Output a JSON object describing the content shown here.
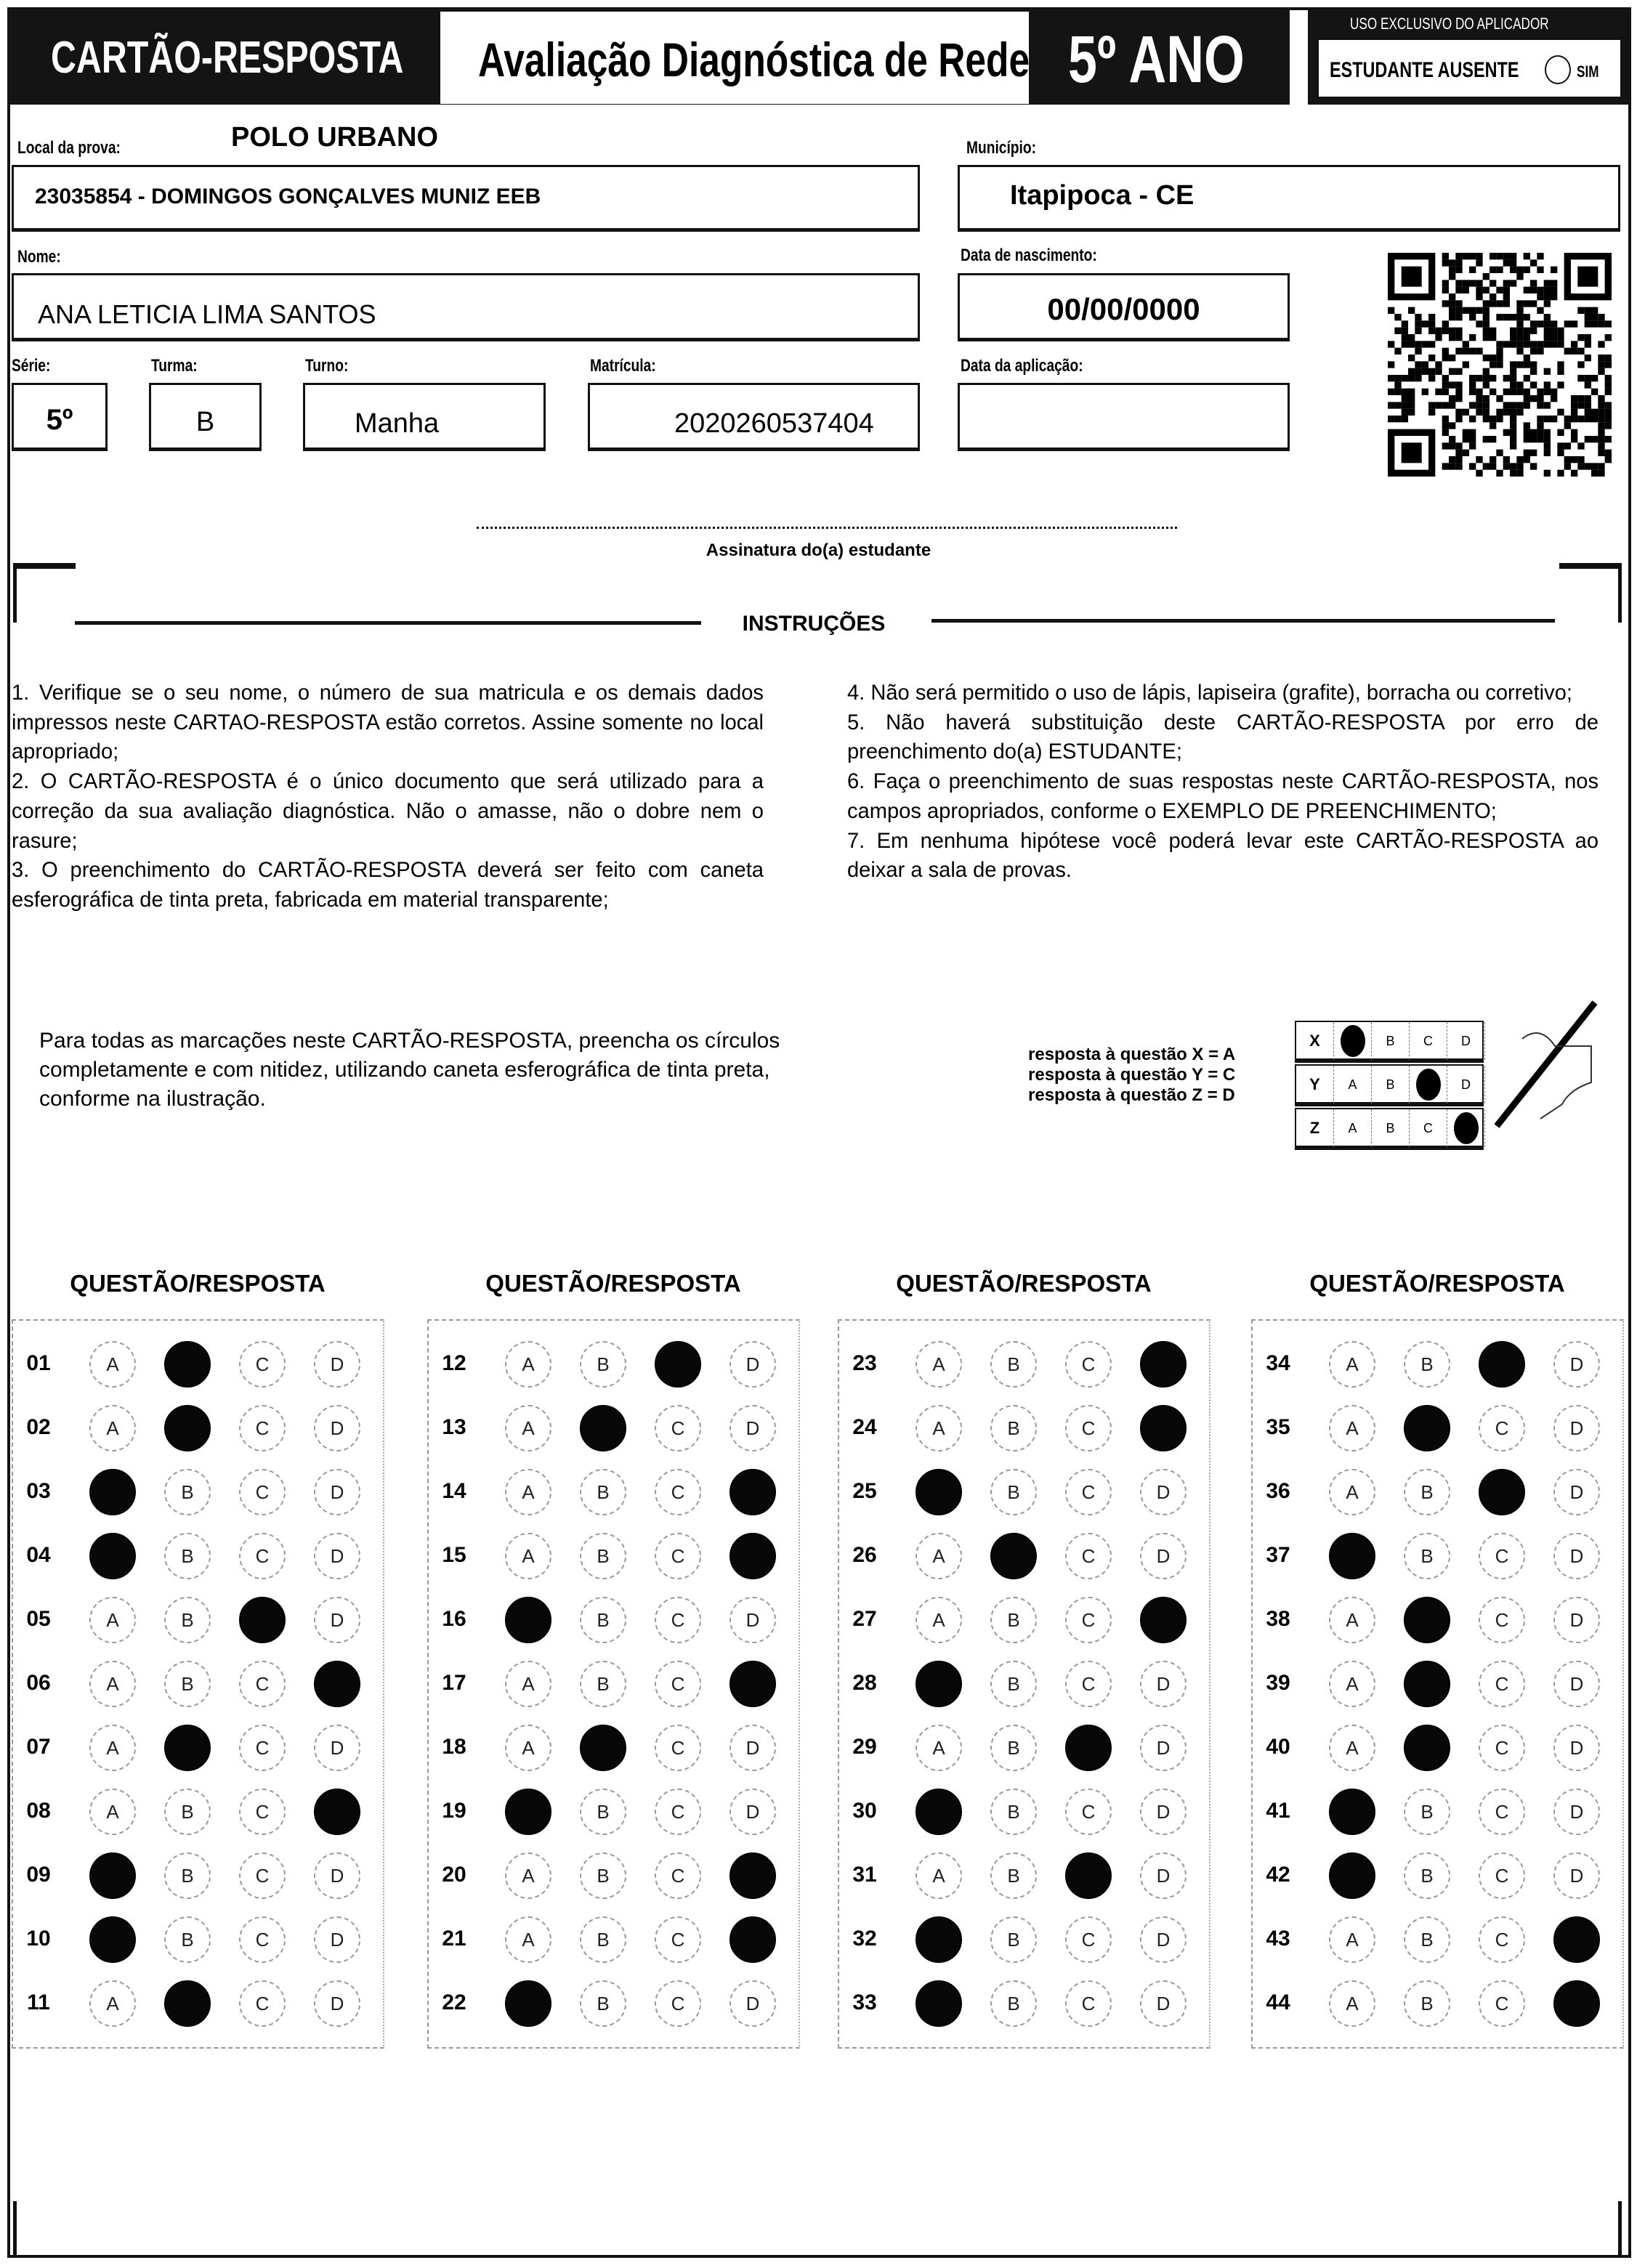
{
  "header": {
    "title": "CARTÃO-RESPOSTA",
    "subtitle": "Avaliação Diagnóstica de Rede",
    "grade": "5º ANO",
    "applicator": {
      "label": "USO EXCLUSIVO DO APLICADOR",
      "absent_label": "ESTUDANTE AUSENTE",
      "absent_option": "SIM"
    }
  },
  "fields": {
    "local_label": "Local da prova:",
    "local_polo": "POLO URBANO",
    "school": "23035854 - DOMINGOS GONÇALVES MUNIZ EEB",
    "municipio_label": "Município:",
    "municipio": "Itapipoca - CE",
    "nome_label": "Nome:",
    "nome": "ANA LETICIA LIMA SANTOS",
    "nascimento_label": "Data de nascimento:",
    "nascimento": "00/00/0000",
    "serie_label": "Série:",
    "serie": "5º",
    "turma_label": "Turma:",
    "turma": "B",
    "turno_label": "Turno:",
    "turno": "Manha",
    "matricula_label": "Matrícula:",
    "matricula": "2020260537404",
    "aplicacao_label": "Data da aplicação:",
    "aplicacao": ""
  },
  "signature_label": "Assinatura do(a) estudante",
  "instructions": {
    "title": "INSTRUÇÕES",
    "left": [
      "1. Verifique se o seu nome, o número de sua matricula e os demais dados impressos neste CARTAO-RESPOSTA estão corretos. Assine somente no local apropriado;",
      "2. O CARTÃO-RESPOSTA é o único documento que será utilizado para a correção da sua avaliação diagnóstica. Não o amasse, não o dobre nem o rasure;",
      "3. O preenchimento do CARTÃO-RESPOSTA deverá ser feito com caneta esferográfica de tinta preta, fabricada em material transparente;"
    ],
    "right": [
      "4. Não será permitido o uso de lápis, lapiseira (grafite), borracha ou corretivo;",
      "5. Não haverá substituição deste CARTÃO-RESPOSTA por erro de preenchimento do(a) ESTUDANTE;",
      "6. Faça o preenchimento de suas respostas neste CARTÃO-RESPOSTA, nos campos apropriados, conforme o EXEMPLO DE PREENCHIMENTO;",
      "7. Em nenhuma hipótese você poderá levar este CARTÃO-RESPOSTA ao deixar a sala de provas."
    ]
  },
  "example": {
    "text": "Para todas as marcações neste CARTÃO-RESPOSTA, preencha os círculos completamente e com nitidez, utilizando caneta esferográfica de tinta preta, conforme na ilustração.",
    "legend": [
      "resposta à questão X = A",
      "resposta à questão Y = C",
      "resposta à questão Z = D"
    ],
    "rows": [
      {
        "q": "X",
        "answer": "A"
      },
      {
        "q": "Y",
        "answer": "C"
      },
      {
        "q": "Z",
        "answer": "D"
      }
    ],
    "options": [
      "A",
      "B",
      "C",
      "D"
    ]
  },
  "answers": {
    "column_title": "QUESTÃO/RESPOSTA",
    "options": [
      "A",
      "B",
      "C",
      "D"
    ],
    "columns": [
      [
        [
          "01",
          "B"
        ],
        [
          "02",
          "B"
        ],
        [
          "03",
          "A"
        ],
        [
          "04",
          "A"
        ],
        [
          "05",
          "C"
        ],
        [
          "06",
          "D"
        ],
        [
          "07",
          "B"
        ],
        [
          "08",
          "D"
        ],
        [
          "09",
          "A"
        ],
        [
          "10",
          "A"
        ],
        [
          "11",
          "B"
        ]
      ],
      [
        [
          "12",
          "C"
        ],
        [
          "13",
          "B"
        ],
        [
          "14",
          "D"
        ],
        [
          "15",
          "D"
        ],
        [
          "16",
          "A"
        ],
        [
          "17",
          "D"
        ],
        [
          "18",
          "B"
        ],
        [
          "19",
          "A"
        ],
        [
          "20",
          "D"
        ],
        [
          "21",
          "D"
        ],
        [
          "22",
          "A"
        ]
      ],
      [
        [
          "23",
          "D"
        ],
        [
          "24",
          "D"
        ],
        [
          "25",
          "A"
        ],
        [
          "26",
          "B"
        ],
        [
          "27",
          "D"
        ],
        [
          "28",
          "A"
        ],
        [
          "29",
          "C"
        ],
        [
          "30",
          "A"
        ],
        [
          "31",
          "C"
        ],
        [
          "32",
          "A"
        ],
        [
          "33",
          "A"
        ]
      ],
      [
        [
          "34",
          "C"
        ],
        [
          "35",
          "B"
        ],
        [
          "36",
          "C"
        ],
        [
          "37",
          "A"
        ],
        [
          "38",
          "B"
        ],
        [
          "39",
          "B"
        ],
        [
          "40",
          "B"
        ],
        [
          "41",
          "A"
        ],
        [
          "42",
          "A"
        ],
        [
          "43",
          "D"
        ],
        [
          "44",
          "D"
        ]
      ]
    ]
  }
}
